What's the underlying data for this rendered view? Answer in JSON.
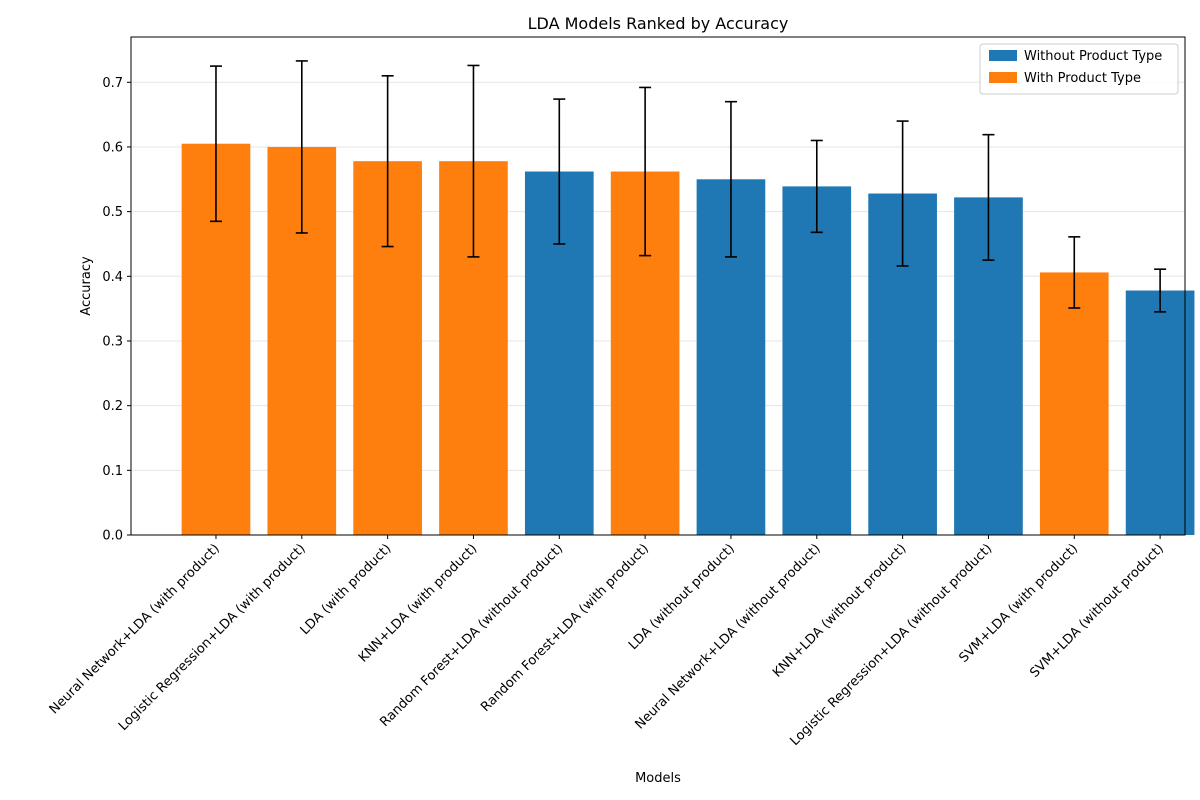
{
  "chart_data": {
    "type": "bar",
    "title": "LDA Models Ranked by Accuracy",
    "xlabel": "Models",
    "ylabel": "Accuracy",
    "ylim": [
      0,
      0.77
    ],
    "yticks": [
      "0.0",
      "0.1",
      "0.2",
      "0.3",
      "0.4",
      "0.5",
      "0.6",
      "0.7"
    ],
    "grid": "horizontal",
    "legend_position": "top-right",
    "colors": {
      "without": "#1f77b4",
      "with": "#ff7f0e"
    },
    "legend": [
      {
        "label": "Without Product Type",
        "group": "without"
      },
      {
        "label": "With Product Type",
        "group": "with"
      }
    ],
    "categories": [
      "Neural Network+LDA (with product)",
      "Logistic Regression+LDA (with product)",
      "LDA (with product)",
      "KNN+LDA (with product)",
      "Random Forest+LDA (without product)",
      "Random Forest+LDA (with product)",
      "LDA (without product)",
      "Neural Network+LDA (without product)",
      "KNN+LDA (without product)",
      "Logistic Regression+LDA (without product)",
      "SVM+LDA (with product)",
      "SVM+LDA (without product)"
    ],
    "values": [
      0.605,
      0.6,
      0.578,
      0.578,
      0.562,
      0.562,
      0.55,
      0.539,
      0.528,
      0.522,
      0.406,
      0.378
    ],
    "errors": [
      0.12,
      0.133,
      0.132,
      0.148,
      0.112,
      0.13,
      0.12,
      0.071,
      0.112,
      0.097,
      0.055,
      0.033
    ],
    "groups": [
      "with",
      "with",
      "with",
      "with",
      "without",
      "with",
      "without",
      "without",
      "without",
      "without",
      "with",
      "without"
    ]
  }
}
